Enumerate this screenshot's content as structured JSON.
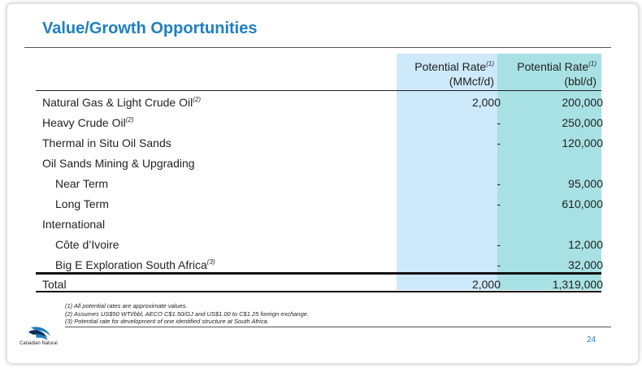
{
  "title": "Value/Growth Opportunities",
  "headers": {
    "col1": "Potential Rate",
    "col1_note": "(1)",
    "col1_unit": "(MMcf/d)",
    "col2": "Potential Rate",
    "col2_note": "(1)",
    "col2_unit": "(bbl/d)"
  },
  "rows": [
    {
      "label": "Natural Gas & Light Crude Oil",
      "note": "(2)",
      "v1": "2,000",
      "v2": "200,000"
    },
    {
      "label": "Heavy Crude Oil",
      "note": "(2)",
      "v1": "-",
      "v2": "250,000"
    },
    {
      "label": "Thermal in Situ Oil Sands",
      "note": "",
      "v1": "-",
      "v2": "120,000"
    },
    {
      "label": "Oil Sands Mining & Upgrading",
      "note": "",
      "v1": "",
      "v2": ""
    },
    {
      "label": "Near Term",
      "note": "",
      "v1": "-",
      "v2": "95,000"
    },
    {
      "label": "Long Term",
      "note": "",
      "v1": "-",
      "v2": "610,000"
    },
    {
      "label": "International",
      "note": "",
      "v1": "",
      "v2": ""
    },
    {
      "label": "Côte d’Ivoire",
      "note": "",
      "v1": "-",
      "v2": "12,000"
    },
    {
      "label": "Big E Exploration South Africa",
      "note": "(3)",
      "v1": "-",
      "v2": "32,000"
    }
  ],
  "total": {
    "label": "Total",
    "v1": "2,000",
    "v2": "1,319,000"
  },
  "footnotes": [
    "(1) All potential rates are approximate values.",
    "(2) Assumes US$50 WTI/bbl, AECO C$1.50/GJ and US$1.00 to C$1.25 foreign exchange.",
    "(3) Potential rate for development of one identified structure at South Africa."
  ],
  "logo_text": "Canadian Natural",
  "page_number": "24",
  "colors": {
    "title": "#1f7fc0",
    "col1_bg": "#cde9fa",
    "col2_bg": "#a8e1e3"
  }
}
